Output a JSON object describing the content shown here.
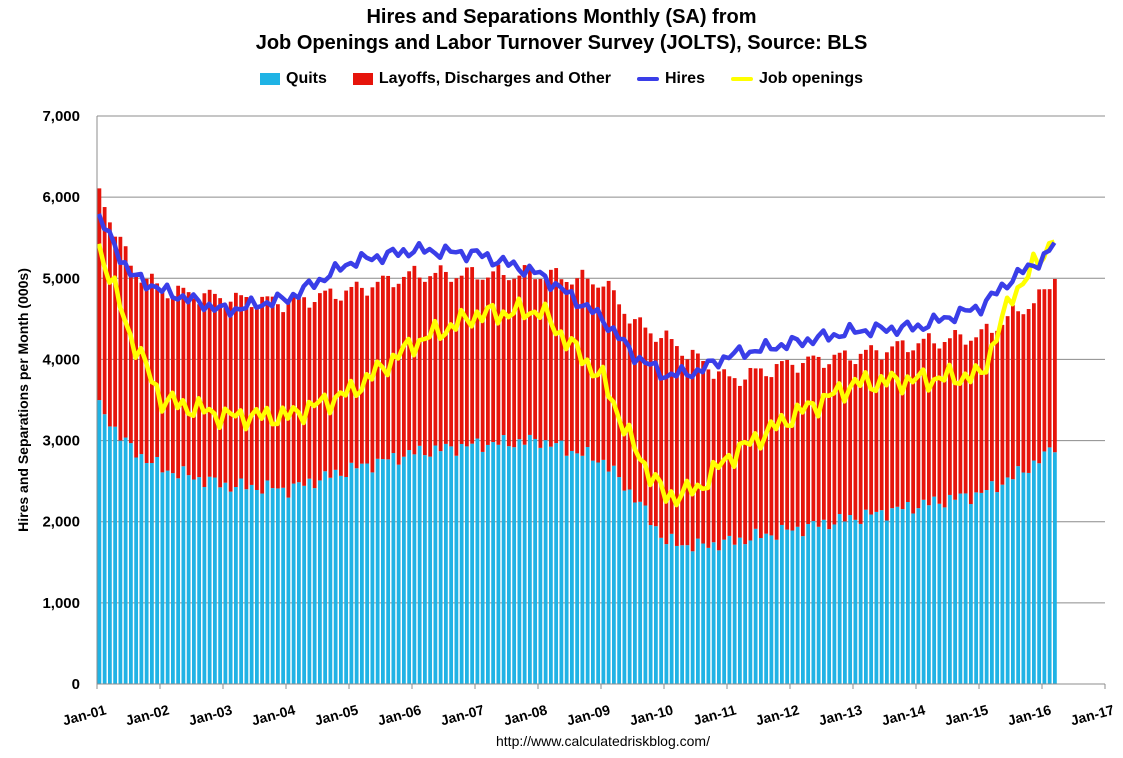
{
  "chart_data": {
    "type": "bar",
    "title": "Hires and Separations Monthly (SA) from",
    "subtitle": "Job Openings and Labor Turnover Survey (JOLTS), Source: BLS",
    "xlabel": "",
    "ylabel": "Hires and Separations per Month (000s)",
    "ylim": [
      0,
      7000
    ],
    "yticks": [
      0,
      1000,
      2000,
      3000,
      4000,
      5000,
      6000,
      7000
    ],
    "ytick_labels": [
      "0",
      "1,000",
      "2,000",
      "3,000",
      "4,000",
      "5,000",
      "6,000",
      "7,000"
    ],
    "xtick_labels": [
      "Jan-01",
      "Jan-02",
      "Jan-03",
      "Jan-04",
      "Jan-05",
      "Jan-06",
      "Jan-07",
      "Jan-08",
      "Jan-09",
      "Jan-10",
      "Jan-11",
      "Jan-12",
      "Jan-13",
      "Jan-14",
      "Jan-15",
      "Jan-16",
      "Jan-17"
    ],
    "grid": true,
    "legend_position": "top-center",
    "start": "Jan-01",
    "months": 183,
    "anchor_months": [
      0,
      6,
      12,
      24,
      36,
      48,
      60,
      72,
      84,
      96,
      102,
      108,
      114,
      120,
      132,
      144,
      156,
      168,
      174,
      180,
      182
    ],
    "series": [
      {
        "name": "Quits",
        "kind": "stacked-bar",
        "color": "#1fb3e5",
        "anchors": [
          3400,
          2900,
          2650,
          2450,
          2400,
          2650,
          2850,
          2950,
          3000,
          2750,
          2300,
          1750,
          1700,
          1750,
          1900,
          2050,
          2200,
          2350,
          2550,
          2800,
          2950
        ]
      },
      {
        "name": "Layoffs, Discharges and Other",
        "kind": "stacked-bar",
        "color": "#e6140b",
        "anchors": [
          2650,
          2250,
          2200,
          2300,
          2300,
          2200,
          2200,
          2100,
          2050,
          2200,
          2150,
          2500,
          2300,
          2000,
          2050,
          2000,
          2000,
          1950,
          2000,
          2000,
          2100
        ]
      },
      {
        "name": "Hires",
        "kind": "line",
        "color": "#3a3ee8",
        "anchors": [
          5750,
          5050,
          4850,
          4600,
          4750,
          5200,
          5350,
          5300,
          5050,
          4500,
          4050,
          3800,
          3850,
          4050,
          4200,
          4350,
          4400,
          4650,
          5000,
          5250,
          5420
        ]
      },
      {
        "name": "Job openings",
        "kind": "line",
        "color": "#ffff00",
        "anchors": [
          5400,
          4300,
          3500,
          3300,
          3300,
          3600,
          4200,
          4550,
          4600,
          3750,
          2900,
          2300,
          2400,
          2800,
          3300,
          3700,
          3750,
          3800,
          4800,
          5300,
          5550
        ]
      }
    ]
  },
  "source_text": "http://www.calculatedriskblog.com/"
}
